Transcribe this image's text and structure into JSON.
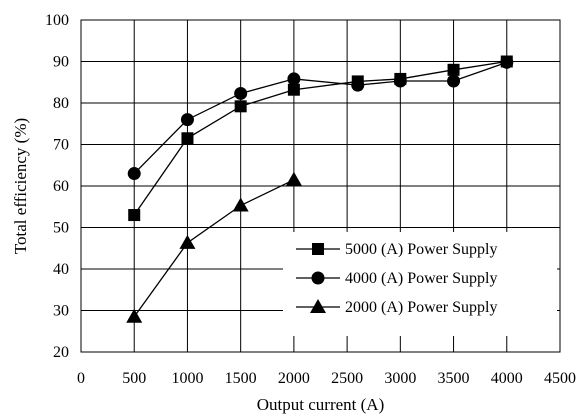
{
  "chart_data": {
    "type": "line",
    "title": "",
    "xlabel": "Output current (A)",
    "ylabel": "Total efficiency (%)",
    "xlim": [
      0,
      4500
    ],
    "ylim": [
      20,
      100
    ],
    "xticks": [
      "0",
      "500",
      "1000",
      "1500",
      "2000",
      "2500",
      "3000",
      "3500",
      "4000",
      "4500"
    ],
    "yticks": [
      "20",
      "30",
      "40",
      "50",
      "60",
      "70",
      "80",
      "90",
      "100"
    ],
    "grid": true,
    "legend_position": "bottom-right",
    "series": [
      {
        "name": "5000 (A) Power Supply",
        "marker": "square",
        "x": [
          500,
          1000,
          1500,
          2000,
          2600,
          3000,
          3500,
          4000
        ],
        "y": [
          53,
          71.5,
          79.2,
          83.2,
          85.2,
          85.8,
          88,
          90
        ]
      },
      {
        "name": "4000 (A) Power Supply",
        "marker": "circle",
        "x": [
          500,
          1000,
          1500,
          2000,
          2600,
          3000,
          3500,
          4000
        ],
        "y": [
          63,
          76,
          82.3,
          85.8,
          84.3,
          85.3,
          85.3,
          89.8
        ]
      },
      {
        "name": "2000 (A) Power Supply",
        "marker": "triangle",
        "x": [
          500,
          1000,
          1500,
          2000
        ],
        "y": [
          28.5,
          46.3,
          55.3,
          61.5
        ]
      }
    ]
  }
}
